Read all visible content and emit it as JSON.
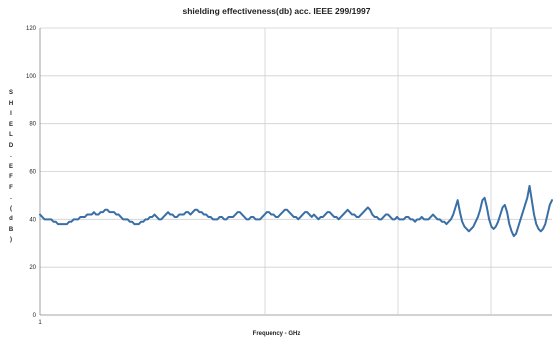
{
  "chart_data": {
    "type": "line",
    "title": "shielding effectiveness(db) acc. IEEE 299/1997",
    "xlabel": "Frequency - GHz",
    "ylabel": "SHIELD.EFF.(dB)",
    "xscale": "log",
    "ylim": [
      0,
      120
    ],
    "yticks": [
      0,
      20,
      40,
      60,
      80,
      100,
      120
    ],
    "xtick_labels": [
      "1"
    ],
    "grid": true,
    "legend": "none",
    "series": [
      {
        "color": "#3a6fa6",
        "values": [
          42,
          41,
          40,
          40,
          40,
          40,
          39,
          39,
          38,
          38,
          38,
          38,
          38,
          39,
          39,
          40,
          40,
          40,
          41,
          41,
          41,
          42,
          42,
          42,
          43,
          42,
          42,
          43,
          43,
          44,
          44,
          43,
          43,
          43,
          42,
          42,
          41,
          40,
          40,
          40,
          39,
          39,
          38,
          38,
          38,
          39,
          39,
          40,
          40,
          41,
          41,
          42,
          41,
          40,
          40,
          41,
          42,
          43,
          42,
          42,
          41,
          41,
          42,
          42,
          42,
          43,
          43,
          42,
          43,
          44,
          44,
          43,
          43,
          42,
          42,
          41,
          41,
          40,
          40,
          40,
          41,
          41,
          40,
          40,
          41,
          41,
          41,
          42,
          43,
          43,
          42,
          41,
          40,
          40,
          41,
          41,
          40,
          40,
          40,
          41,
          42,
          43,
          43,
          42,
          42,
          41,
          41,
          42,
          43,
          44,
          44,
          43,
          42,
          41,
          41,
          40,
          41,
          42,
          43,
          43,
          42,
          41,
          42,
          41,
          40,
          41,
          41,
          42,
          43,
          43,
          42,
          41,
          41,
          40,
          41,
          42,
          43,
          44,
          43,
          42,
          42,
          41,
          41,
          42,
          43,
          44,
          45,
          44,
          42,
          41,
          41,
          40,
          40,
          41,
          42,
          42,
          41,
          40,
          40,
          41,
          40,
          40,
          40,
          41,
          41,
          40,
          40,
          39,
          40,
          40,
          41,
          40,
          40,
          40,
          41,
          42,
          41,
          40,
          40,
          39,
          39,
          38,
          39,
          40,
          42,
          45,
          48,
          43,
          39,
          37,
          36,
          35,
          36,
          37,
          39,
          41,
          44,
          48,
          49,
          45,
          40,
          37,
          36,
          37,
          39,
          42,
          45,
          46,
          43,
          38,
          35,
          33,
          34,
          37,
          40,
          43,
          46,
          49,
          54,
          48,
          42,
          38,
          36,
          35,
          36,
          38,
          42,
          46,
          48
        ]
      }
    ]
  }
}
